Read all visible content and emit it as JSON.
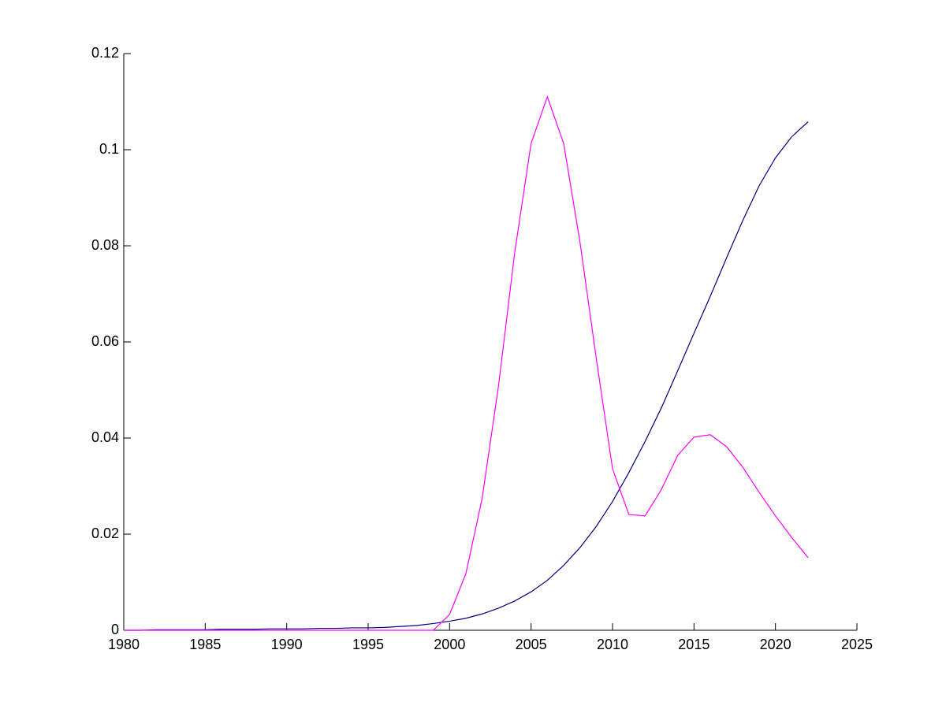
{
  "chart_data": {
    "type": "line",
    "x": [
      1980,
      1981,
      1982,
      1983,
      1984,
      1985,
      1986,
      1987,
      1988,
      1989,
      1990,
      1991,
      1992,
      1993,
      1994,
      1995,
      1996,
      1997,
      1998,
      1999,
      2000,
      2001,
      2002,
      2003,
      2004,
      2005,
      2006,
      2007,
      2008,
      2009,
      2010,
      2011,
      2012,
      2013,
      2014,
      2015,
      2016,
      2017,
      2018,
      2019,
      2020,
      2021,
      2022
    ],
    "series": [
      {
        "color": "#00007f",
        "values": [
          0,
          0,
          0.0001,
          0.0001,
          0.0001,
          0.0001,
          0.0002,
          0.0002,
          0.0002,
          0.0003,
          0.0003,
          0.0003,
          0.0004,
          0.0004,
          0.0005,
          0.0005,
          0.0006,
          0.0008,
          0.001,
          0.0014,
          0.0019,
          0.0025,
          0.0034,
          0.0046,
          0.0061,
          0.008,
          0.0104,
          0.0135,
          0.0172,
          0.0216,
          0.0268,
          0.0328,
          0.0393,
          0.0463,
          0.054,
          0.0618,
          0.0695,
          0.0775,
          0.0853,
          0.0925,
          0.0983,
          0.1027,
          0.1058
        ]
      },
      {
        "color": "#ff00ff",
        "values": [
          0,
          0,
          0,
          0,
          0,
          0,
          0,
          0,
          0,
          0,
          0,
          0,
          0,
          0,
          0,
          0,
          0,
          0,
          0,
          0,
          0.0033,
          0.0118,
          0.0275,
          0.0508,
          0.0787,
          0.1013,
          0.111,
          0.1013,
          0.0808,
          0.0566,
          0.0336,
          0.0241,
          0.0238,
          0.0293,
          0.0364,
          0.0402,
          0.0407,
          0.0382,
          0.0339,
          0.0287,
          0.0238,
          0.0193,
          0.0151
        ]
      }
    ],
    "xlim": [
      1980,
      2025
    ],
    "xticks": [
      1980,
      1985,
      1990,
      1995,
      2000,
      2005,
      2010,
      2015,
      2020,
      2025
    ],
    "ylim": [
      0,
      0.12
    ],
    "yticks": [
      0,
      0.02,
      0.04,
      0.06,
      0.08,
      0.1,
      0.12
    ],
    "grid": false
  }
}
